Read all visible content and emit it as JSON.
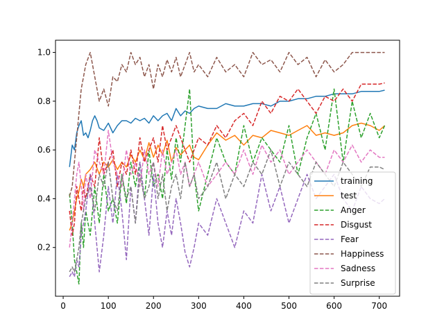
{
  "chart_data": {
    "type": "line",
    "title": "",
    "xlabel": "",
    "ylabel": "",
    "xlim": [
      -17,
      745
    ],
    "ylim": [
      0.0,
      1.05
    ],
    "xticks": [
      0,
      100,
      200,
      300,
      400,
      500,
      600,
      700
    ],
    "yticks": [
      0.2,
      0.4,
      0.6,
      0.8,
      1.0
    ],
    "xtick_labels": [
      "0",
      "100",
      "200",
      "300",
      "400",
      "500",
      "600",
      "700"
    ],
    "ytick_labels": [
      "0.2",
      "0.4",
      "0.6",
      "0.8",
      "1.0"
    ],
    "grid": false,
    "legend_position": "lower-right",
    "series": [
      {
        "name": "training",
        "color": "#1f77b4",
        "dash": "solid",
        "x": [
          14,
          20,
          25,
          30,
          35,
          40,
          45,
          50,
          55,
          60,
          65,
          70,
          75,
          80,
          90,
          100,
          110,
          120,
          130,
          140,
          150,
          160,
          170,
          180,
          190,
          200,
          210,
          220,
          230,
          240,
          250,
          260,
          270,
          280,
          290,
          300,
          320,
          340,
          360,
          380,
          400,
          420,
          440,
          460,
          480,
          500,
          520,
          540,
          560,
          580,
          600,
          620,
          640,
          660,
          680,
          700,
          712
        ],
        "y": [
          0.53,
          0.62,
          0.6,
          0.67,
          0.7,
          0.72,
          0.66,
          0.67,
          0.65,
          0.68,
          0.72,
          0.74,
          0.72,
          0.69,
          0.68,
          0.71,
          0.67,
          0.7,
          0.72,
          0.72,
          0.71,
          0.73,
          0.72,
          0.73,
          0.71,
          0.74,
          0.72,
          0.74,
          0.75,
          0.72,
          0.77,
          0.74,
          0.76,
          0.75,
          0.77,
          0.78,
          0.77,
          0.77,
          0.79,
          0.78,
          0.78,
          0.79,
          0.79,
          0.78,
          0.8,
          0.8,
          0.81,
          0.81,
          0.82,
          0.82,
          0.83,
          0.83,
          0.83,
          0.84,
          0.84,
          0.84,
          0.845
        ]
      },
      {
        "name": "test",
        "color": "#ff7f0e",
        "dash": "solid",
        "x": [
          14,
          20,
          25,
          30,
          35,
          40,
          45,
          50,
          60,
          70,
          80,
          90,
          100,
          110,
          120,
          130,
          140,
          150,
          160,
          170,
          180,
          190,
          200,
          210,
          220,
          230,
          240,
          250,
          260,
          270,
          280,
          290,
          300,
          320,
          340,
          360,
          380,
          400,
          420,
          440,
          460,
          480,
          500,
          520,
          540,
          560,
          580,
          600,
          620,
          640,
          660,
          680,
          700,
          712
        ],
        "y": [
          0.27,
          0.3,
          0.35,
          0.4,
          0.43,
          0.48,
          0.45,
          0.5,
          0.52,
          0.55,
          0.5,
          0.55,
          0.53,
          0.56,
          0.52,
          0.55,
          0.53,
          0.58,
          0.55,
          0.6,
          0.56,
          0.63,
          0.57,
          0.62,
          0.58,
          0.64,
          0.55,
          0.61,
          0.58,
          0.6,
          0.62,
          0.57,
          0.56,
          0.62,
          0.67,
          0.64,
          0.66,
          0.62,
          0.66,
          0.65,
          0.68,
          0.67,
          0.66,
          0.68,
          0.7,
          0.66,
          0.67,
          0.66,
          0.67,
          0.7,
          0.71,
          0.7,
          0.68,
          0.7
        ]
      },
      {
        "name": "Anger",
        "color": "#2ca02c",
        "dash": "dashed",
        "x": [
          14,
          20,
          25,
          30,
          35,
          40,
          45,
          50,
          60,
          70,
          80,
          90,
          100,
          110,
          120,
          130,
          140,
          150,
          160,
          170,
          180,
          190,
          200,
          210,
          220,
          230,
          240,
          250,
          260,
          270,
          280,
          290,
          300,
          320,
          340,
          360,
          380,
          400,
          420,
          440,
          460,
          480,
          500,
          520,
          540,
          560,
          580,
          600,
          620,
          640,
          660,
          680,
          700,
          712
        ],
        "y": [
          0.42,
          0.3,
          0.15,
          0.1,
          0.05,
          0.3,
          0.2,
          0.35,
          0.25,
          0.45,
          0.3,
          0.5,
          0.35,
          0.4,
          0.3,
          0.5,
          0.38,
          0.55,
          0.45,
          0.55,
          0.4,
          0.6,
          0.45,
          0.5,
          0.4,
          0.6,
          0.48,
          0.65,
          0.55,
          0.7,
          0.85,
          0.5,
          0.35,
          0.5,
          0.65,
          0.55,
          0.5,
          0.7,
          0.55,
          0.65,
          0.6,
          0.55,
          0.7,
          0.5,
          0.65,
          0.75,
          0.6,
          0.85,
          0.55,
          0.8,
          0.65,
          0.75,
          0.65,
          0.7
        ]
      },
      {
        "name": "Disgust",
        "color": "#d62728",
        "dash": "dashed",
        "x": [
          14,
          20,
          25,
          30,
          35,
          40,
          45,
          50,
          60,
          70,
          80,
          90,
          100,
          110,
          120,
          130,
          140,
          150,
          160,
          170,
          180,
          190,
          200,
          210,
          220,
          230,
          240,
          250,
          260,
          270,
          280,
          290,
          300,
          320,
          340,
          360,
          380,
          400,
          420,
          440,
          460,
          480,
          500,
          520,
          540,
          560,
          580,
          600,
          620,
          640,
          660,
          680,
          700,
          712
        ],
        "y": [
          0.35,
          0.25,
          0.3,
          0.45,
          0.4,
          0.35,
          0.45,
          0.4,
          0.5,
          0.45,
          0.65,
          0.5,
          0.55,
          0.6,
          0.45,
          0.55,
          0.5,
          0.6,
          0.5,
          0.65,
          0.55,
          0.6,
          0.65,
          0.55,
          0.7,
          0.6,
          0.65,
          0.7,
          0.65,
          0.6,
          0.55,
          0.6,
          0.65,
          0.62,
          0.7,
          0.65,
          0.72,
          0.75,
          0.7,
          0.8,
          0.75,
          0.82,
          0.8,
          0.85,
          0.8,
          0.75,
          0.82,
          0.8,
          0.85,
          0.8,
          0.87,
          0.87,
          0.87,
          0.875
        ]
      },
      {
        "name": "Fear",
        "color": "#9467bd",
        "dash": "dashed",
        "x": [
          14,
          20,
          25,
          30,
          35,
          40,
          45,
          50,
          60,
          70,
          80,
          90,
          100,
          110,
          120,
          130,
          140,
          150,
          160,
          170,
          180,
          190,
          200,
          210,
          220,
          230,
          240,
          250,
          260,
          270,
          280,
          290,
          300,
          320,
          340,
          360,
          380,
          400,
          420,
          440,
          460,
          480,
          500,
          520,
          540,
          560,
          580,
          600,
          620,
          640,
          660,
          680,
          700,
          712
        ],
        "y": [
          0.08,
          0.1,
          0.08,
          0.15,
          0.12,
          0.25,
          0.3,
          0.35,
          0.5,
          0.3,
          0.1,
          0.25,
          0.45,
          0.3,
          0.5,
          0.35,
          0.15,
          0.45,
          0.3,
          0.55,
          0.4,
          0.25,
          0.5,
          0.3,
          0.2,
          0.35,
          0.25,
          0.4,
          0.3,
          0.18,
          0.12,
          0.2,
          0.3,
          0.25,
          0.4,
          0.3,
          0.2,
          0.35,
          0.3,
          0.5,
          0.35,
          0.45,
          0.3,
          0.4,
          0.5,
          0.4,
          0.45,
          0.5,
          0.4,
          0.35,
          0.45,
          0.4,
          0.38,
          0.4
        ]
      },
      {
        "name": "Happiness",
        "color": "#8c564b",
        "dash": "dashed",
        "x": [
          14,
          20,
          25,
          30,
          35,
          40,
          45,
          50,
          60,
          70,
          80,
          90,
          100,
          110,
          120,
          130,
          140,
          150,
          160,
          170,
          180,
          190,
          200,
          210,
          220,
          230,
          240,
          250,
          260,
          270,
          280,
          290,
          300,
          320,
          340,
          360,
          380,
          400,
          420,
          440,
          460,
          480,
          500,
          520,
          540,
          560,
          580,
          600,
          620,
          640,
          660,
          680,
          700,
          712
        ],
        "y": [
          0.41,
          0.45,
          0.55,
          0.65,
          0.75,
          0.85,
          0.9,
          0.95,
          1.0,
          0.9,
          0.8,
          0.85,
          0.78,
          0.9,
          0.88,
          0.95,
          0.92,
          1.0,
          0.95,
          0.98,
          0.9,
          0.95,
          0.85,
          0.95,
          0.9,
          0.97,
          0.92,
          0.98,
          0.9,
          0.95,
          1.0,
          0.92,
          0.95,
          0.9,
          0.98,
          0.92,
          0.95,
          0.9,
          1.0,
          0.95,
          0.97,
          0.92,
          1.0,
          0.95,
          0.98,
          0.9,
          0.97,
          0.92,
          0.95,
          1.0,
          1.0,
          1.0,
          1.0,
          1.0
        ]
      },
      {
        "name": "Sadness",
        "color": "#e377c2",
        "dash": "dashed",
        "x": [
          14,
          20,
          25,
          30,
          35,
          40,
          45,
          50,
          60,
          70,
          80,
          90,
          100,
          110,
          120,
          130,
          140,
          150,
          160,
          170,
          180,
          190,
          200,
          210,
          220,
          230,
          240,
          250,
          260,
          270,
          280,
          290,
          300,
          320,
          340,
          360,
          380,
          400,
          420,
          440,
          460,
          480,
          500,
          520,
          540,
          560,
          580,
          600,
          620,
          640,
          660,
          680,
          700,
          712
        ],
        "y": [
          0.2,
          0.3,
          0.4,
          0.5,
          0.55,
          0.45,
          0.35,
          0.5,
          0.4,
          0.6,
          0.55,
          0.5,
          0.68,
          0.55,
          0.5,
          0.45,
          0.6,
          0.5,
          0.55,
          0.45,
          0.6,
          0.5,
          0.55,
          0.45,
          0.6,
          0.5,
          0.55,
          0.6,
          0.5,
          0.55,
          0.45,
          0.5,
          0.55,
          0.45,
          0.5,
          0.55,
          0.5,
          0.6,
          0.5,
          0.62,
          0.55,
          0.6,
          0.5,
          0.55,
          0.6,
          0.55,
          0.5,
          0.6,
          0.55,
          0.62,
          0.55,
          0.6,
          0.57,
          0.57
        ]
      },
      {
        "name": "Surprise",
        "color": "#7f7f7f",
        "dash": "dashed",
        "x": [
          14,
          20,
          25,
          30,
          35,
          40,
          45,
          50,
          60,
          70,
          80,
          90,
          100,
          110,
          120,
          130,
          140,
          150,
          160,
          170,
          180,
          190,
          200,
          210,
          220,
          230,
          240,
          250,
          260,
          270,
          280,
          290,
          300,
          320,
          340,
          360,
          380,
          400,
          420,
          440,
          460,
          480,
          500,
          520,
          540,
          560,
          580,
          600,
          620,
          640,
          660,
          680,
          700,
          712
        ],
        "y": [
          0.1,
          0.12,
          0.1,
          0.15,
          0.2,
          0.3,
          0.35,
          0.4,
          0.45,
          0.35,
          0.5,
          0.45,
          0.55,
          0.4,
          0.35,
          0.5,
          0.4,
          0.45,
          0.3,
          0.5,
          0.4,
          0.45,
          0.55,
          0.4,
          0.5,
          0.35,
          0.45,
          0.5,
          0.4,
          0.55,
          0.45,
          0.5,
          0.4,
          0.45,
          0.55,
          0.4,
          0.5,
          0.45,
          0.55,
          0.5,
          0.6,
          0.45,
          0.55,
          0.5,
          0.45,
          0.55,
          0.5,
          0.45,
          0.55,
          0.5,
          0.45,
          0.53,
          0.53,
          0.52
        ]
      }
    ]
  }
}
